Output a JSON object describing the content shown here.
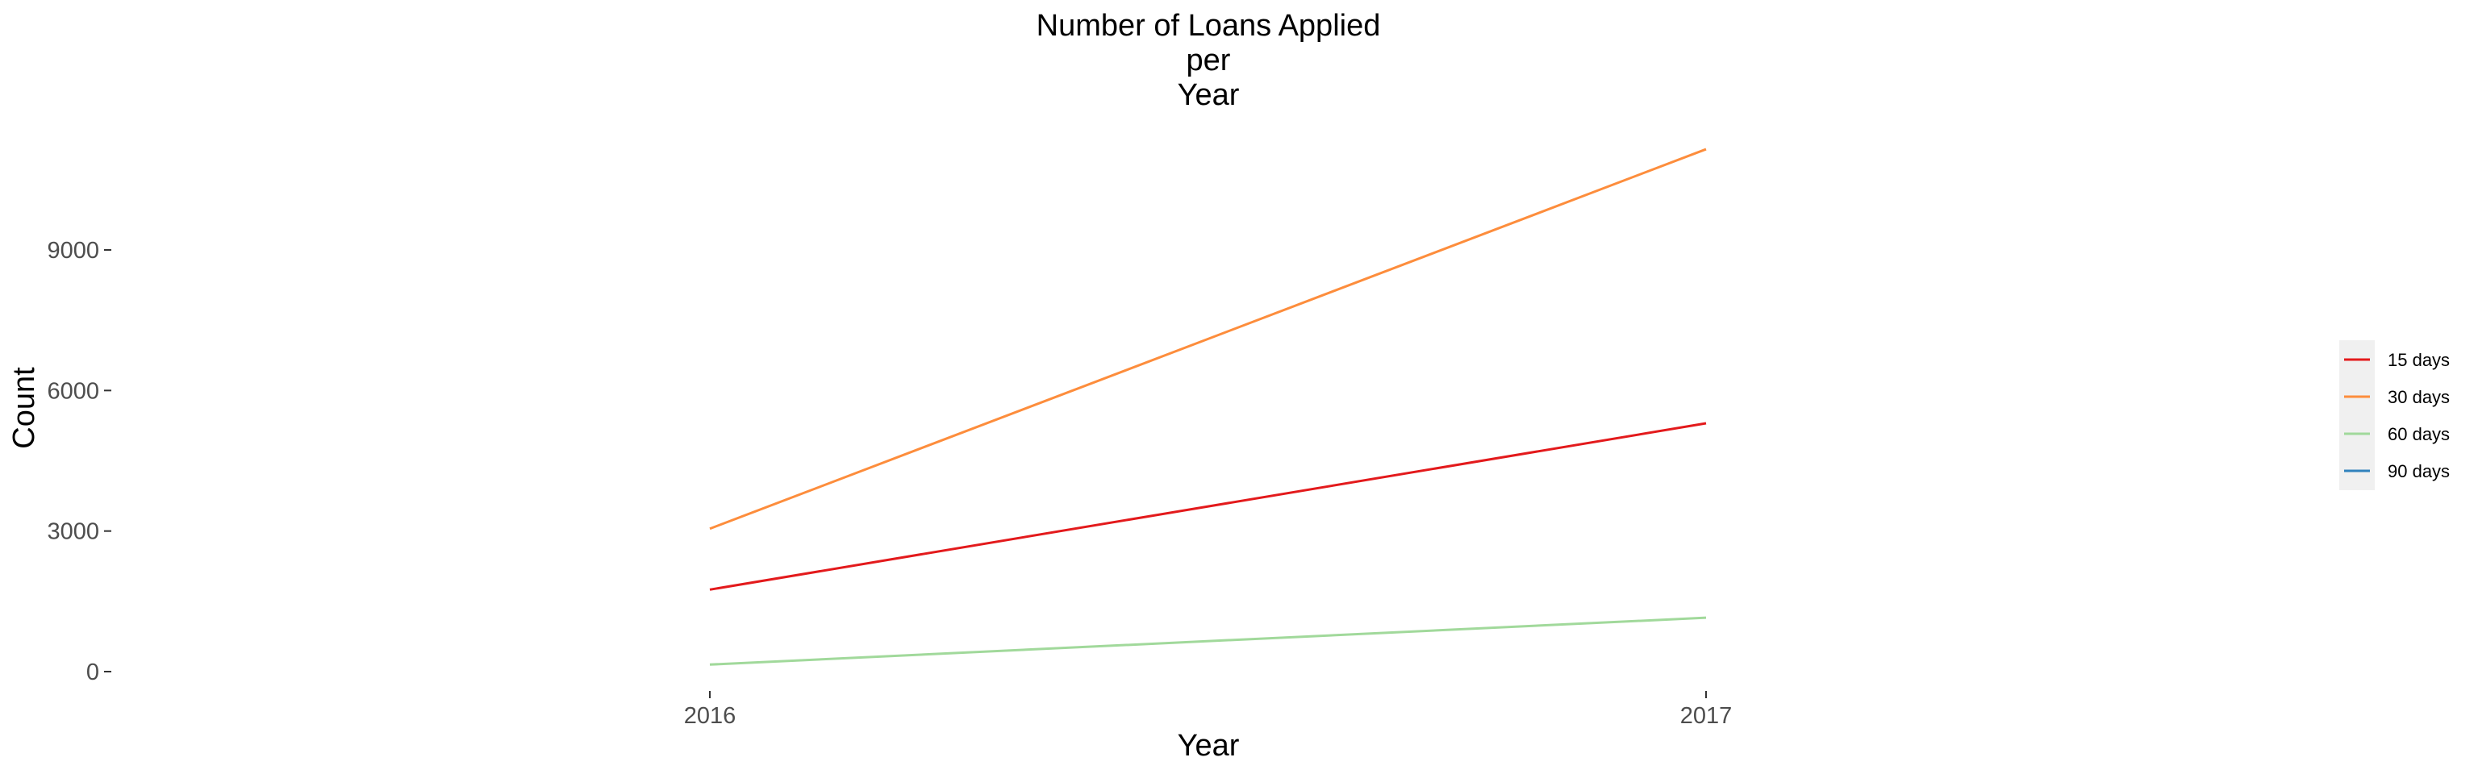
{
  "chart_data": {
    "type": "line",
    "title": [
      "Number of Loans Applied",
      "per",
      "Year"
    ],
    "xlabel": "Year",
    "ylabel": "Count",
    "x": [
      2016,
      2017
    ],
    "xticks": [
      "2016",
      "2017"
    ],
    "yticks": [
      0,
      3000,
      6000,
      9000
    ],
    "ylim": [
      -400,
      11600
    ],
    "grid": false,
    "legend_position": "right",
    "series": [
      {
        "name": "15 days",
        "color": "#e31a1c",
        "values": [
          1750,
          5300
        ]
      },
      {
        "name": "30 days",
        "color": "#fd8d3c",
        "values": [
          3050,
          11150
        ]
      },
      {
        "name": "60 days",
        "color": "#a1d99b",
        "values": [
          150,
          1150
        ]
      },
      {
        "name": "90 days",
        "color": "#3182bd",
        "values": [
          null,
          null
        ]
      }
    ]
  }
}
